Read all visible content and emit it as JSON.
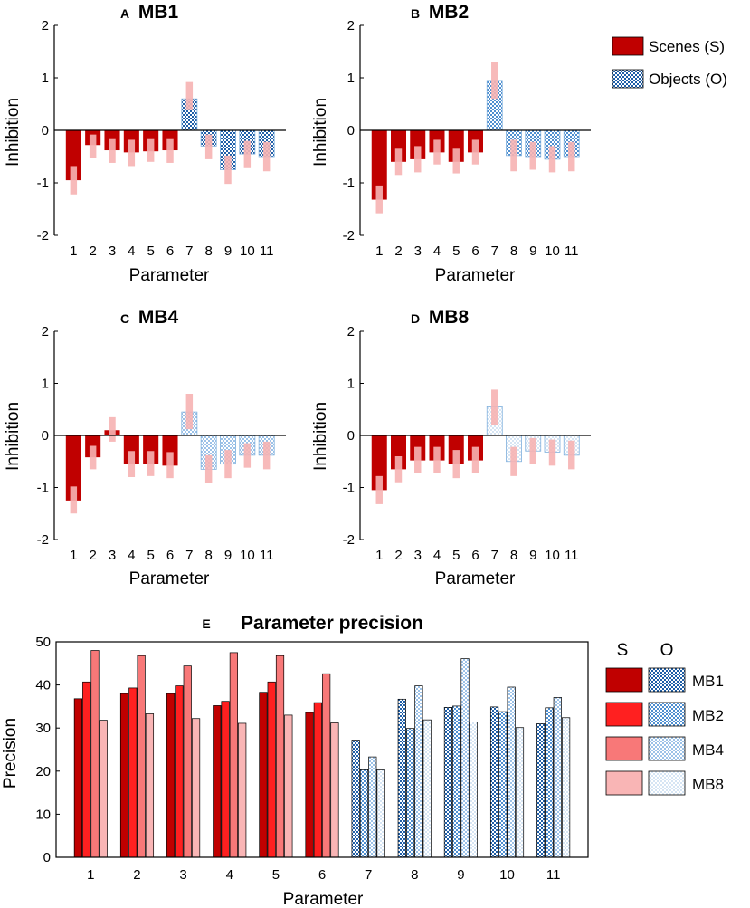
{
  "colors": {
    "S_MB1": "#c00000",
    "S_MB2": "#ff2020",
    "S_MB4": "#f87878",
    "S_MB8": "#f9b5b5",
    "errorbar": "#f6b3b3",
    "O_dark": "#1f5fa8",
    "O_light": "#7fb0dd"
  },
  "legend_top": {
    "scenes": "Scenes (S)",
    "objects": "Objects (O)"
  },
  "legend_bottom": {
    "s_header": "S",
    "o_header": "O",
    "rows": [
      "MB1",
      "MB2",
      "MB4",
      "MB8"
    ]
  },
  "chart_data": [
    {
      "id": "A",
      "letter": "A",
      "type": "bar",
      "title": "MB1",
      "xlabel": "Parameter",
      "ylabel": "Inhibition",
      "ylim": [
        -2,
        2
      ],
      "yticks": [
        "-2",
        "-1",
        "0",
        "1",
        "2"
      ],
      "categories": [
        "1",
        "2",
        "3",
        "4",
        "5",
        "6",
        "7",
        "8",
        "9",
        "10",
        "11"
      ],
      "values": [
        -0.95,
        -0.28,
        -0.38,
        -0.42,
        -0.4,
        -0.38,
        0.6,
        -0.3,
        -0.75,
        -0.45,
        -0.5
      ],
      "error_low": [
        -1.22,
        -0.52,
        -0.62,
        -0.68,
        -0.6,
        -0.62,
        0.4,
        -0.55,
        -1.02,
        -0.72,
        -0.78
      ],
      "error_high": [
        -0.68,
        -0.08,
        -0.15,
        -0.18,
        -0.15,
        -0.15,
        0.92,
        -0.08,
        -0.48,
        -0.2,
        -0.22
      ],
      "series_type": [
        "S",
        "S",
        "S",
        "S",
        "S",
        "S",
        "O",
        "O",
        "O",
        "O",
        "O"
      ]
    },
    {
      "id": "B",
      "letter": "B",
      "type": "bar",
      "title": "MB2",
      "xlabel": "Parameter",
      "ylabel": "Inhibition",
      "ylim": [
        -2,
        2
      ],
      "yticks": [
        "-2",
        "-1",
        "0",
        "1",
        "2"
      ],
      "categories": [
        "1",
        "2",
        "3",
        "4",
        "5",
        "6",
        "7",
        "8",
        "9",
        "10",
        "11"
      ],
      "values": [
        -1.32,
        -0.6,
        -0.55,
        -0.42,
        -0.6,
        -0.42,
        0.95,
        -0.48,
        -0.5,
        -0.55,
        -0.5
      ],
      "error_low": [
        -1.58,
        -0.85,
        -0.8,
        -0.65,
        -0.82,
        -0.65,
        0.6,
        -0.78,
        -0.75,
        -0.8,
        -0.78
      ],
      "error_high": [
        -1.05,
        -0.35,
        -0.3,
        -0.18,
        -0.35,
        -0.18,
        1.3,
        -0.18,
        -0.22,
        -0.3,
        -0.22
      ],
      "series_type": [
        "S",
        "S",
        "S",
        "S",
        "S",
        "S",
        "O",
        "O",
        "O",
        "O",
        "O"
      ]
    },
    {
      "id": "C",
      "letter": "C",
      "type": "bar",
      "title": "MB4",
      "xlabel": "Parameter",
      "ylabel": "Inhibition",
      "ylim": [
        -2,
        2
      ],
      "yticks": [
        "-2",
        "-1",
        "0",
        "1",
        "2"
      ],
      "categories": [
        "1",
        "2",
        "3",
        "4",
        "5",
        "6",
        "7",
        "8",
        "9",
        "10",
        "11"
      ],
      "values": [
        -1.25,
        -0.42,
        0.1,
        -0.55,
        -0.55,
        -0.58,
        0.45,
        -0.65,
        -0.55,
        -0.38,
        -0.38
      ],
      "error_low": [
        -1.5,
        -0.65,
        -0.12,
        -0.8,
        -0.78,
        -0.82,
        0.12,
        -0.92,
        -0.82,
        -0.62,
        -0.65
      ],
      "error_high": [
        -0.98,
        -0.2,
        0.35,
        -0.3,
        -0.3,
        -0.32,
        0.8,
        -0.38,
        -0.28,
        -0.15,
        -0.12
      ],
      "series_type": [
        "S",
        "S",
        "S",
        "S",
        "S",
        "S",
        "O",
        "O",
        "O",
        "O",
        "O"
      ]
    },
    {
      "id": "D",
      "letter": "D",
      "type": "bar",
      "title": "MB8",
      "xlabel": "Parameter",
      "ylabel": "Inhibition",
      "ylim": [
        -2,
        2
      ],
      "yticks": [
        "-2",
        "-1",
        "0",
        "1",
        "2"
      ],
      "categories": [
        "1",
        "2",
        "3",
        "4",
        "5",
        "6",
        "7",
        "8",
        "9",
        "10",
        "11"
      ],
      "values": [
        -1.05,
        -0.65,
        -0.48,
        -0.48,
        -0.55,
        -0.48,
        0.55,
        -0.5,
        -0.3,
        -0.32,
        -0.38
      ],
      "error_low": [
        -1.32,
        -0.9,
        -0.72,
        -0.72,
        -0.82,
        -0.72,
        0.2,
        -0.78,
        -0.55,
        -0.58,
        -0.65
      ],
      "error_high": [
        -0.78,
        -0.4,
        -0.22,
        -0.22,
        -0.28,
        -0.22,
        0.88,
        -0.22,
        -0.05,
        -0.08,
        -0.1
      ],
      "series_type": [
        "S",
        "S",
        "S",
        "S",
        "S",
        "S",
        "O",
        "O",
        "O",
        "O",
        "O"
      ]
    },
    {
      "id": "E",
      "letter": "E",
      "type": "bar",
      "title": "Parameter precision",
      "xlabel": "Parameter",
      "ylabel": "Precision",
      "ylim": [
        0,
        50
      ],
      "yticks": [
        "0",
        "10",
        "20",
        "30",
        "40",
        "50"
      ],
      "categories": [
        "1",
        "2",
        "3",
        "4",
        "5",
        "6",
        "7",
        "8",
        "9",
        "10",
        "11"
      ],
      "series": [
        {
          "name": "MB1",
          "values": [
            36.8,
            38,
            38,
            35.2,
            38.3,
            33.6,
            27.2,
            36.7,
            34.8,
            34.9,
            31
          ]
        },
        {
          "name": "MB2",
          "values": [
            40.7,
            39.3,
            39.8,
            36.2,
            40.7,
            35.9,
            20.3,
            29.9,
            35.1,
            33.8,
            34.7
          ]
        },
        {
          "name": "MB4",
          "values": [
            48,
            46.8,
            44.4,
            47.5,
            46.8,
            42.6,
            23.3,
            39.8,
            46.1,
            39.5,
            37.1
          ]
        },
        {
          "name": "MB8",
          "values": [
            31.8,
            33.3,
            32.2,
            31.1,
            33,
            31.2,
            20.3,
            31.9,
            31.4,
            30.1,
            32.4
          ]
        }
      ],
      "series_type": [
        "S",
        "S",
        "S",
        "S",
        "S",
        "S",
        "O",
        "O",
        "O",
        "O",
        "O"
      ]
    }
  ]
}
